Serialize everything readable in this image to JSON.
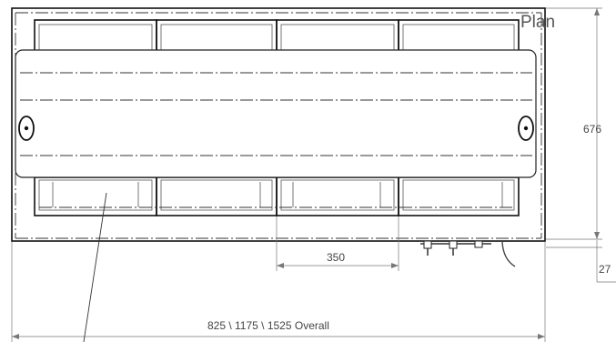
{
  "drawing": {
    "title": "Plan",
    "dimensions": {
      "height": "676",
      "offset": "27",
      "bay_width": "350",
      "overall_width": "825 \\ 1175 \\ 1525 Overall"
    }
  }
}
